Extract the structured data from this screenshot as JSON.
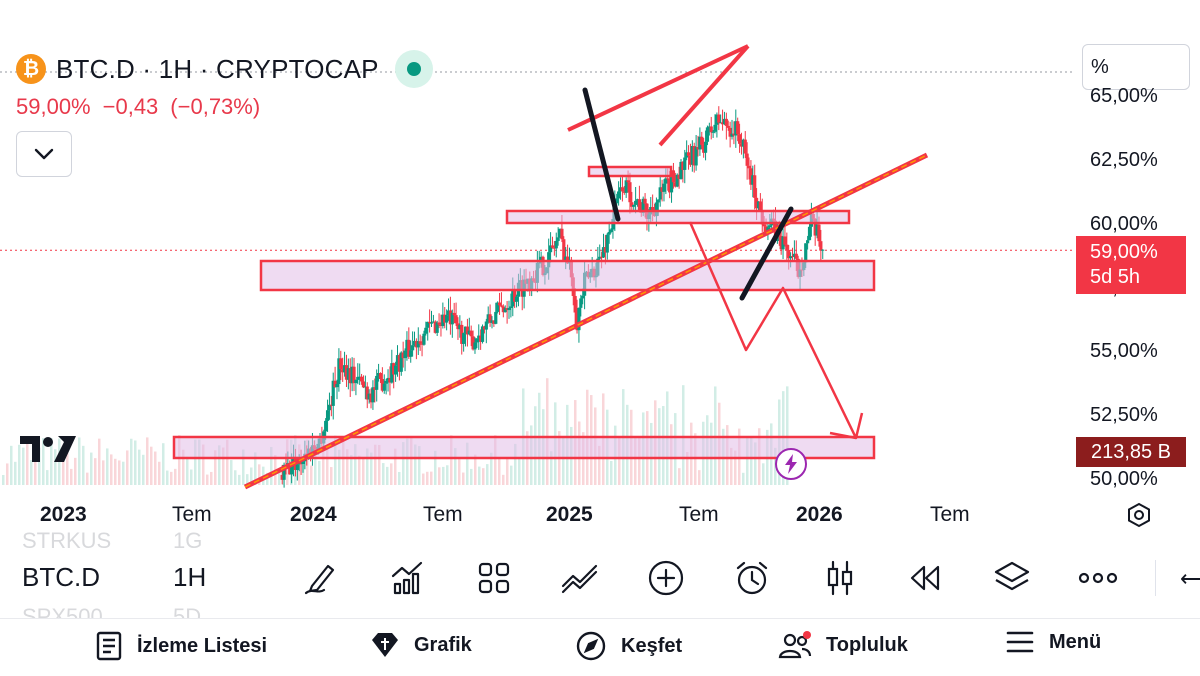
{
  "header": {
    "coin_glyph": "₿",
    "symbol_title": "BTC.D · 1H · CRYPTOCAP",
    "price": "59,00%",
    "change": "−0,43",
    "change_pct": "(−0,73%)"
  },
  "scale_mode": "%",
  "y_axis_ticks": [
    "65,00%",
    "62,50%",
    "60,00%",
    "57,50%",
    "55,00%",
    "52,50%",
    "50,00%"
  ],
  "price_tag": {
    "price": "59,00%",
    "countdown": "5d 5h"
  },
  "volume_tag": "213,85 B",
  "x_axis_ticks": [
    {
      "label": "2023",
      "bold": true
    },
    {
      "label": "Tem",
      "bold": false
    },
    {
      "label": "2024",
      "bold": true
    },
    {
      "label": "Tem",
      "bold": false
    },
    {
      "label": "2025",
      "bold": true
    },
    {
      "label": "Tem",
      "bold": false
    },
    {
      "label": "2026",
      "bold": true
    },
    {
      "label": "Tem",
      "bold": false
    }
  ],
  "colors": {
    "up": "#089981",
    "down": "#f23645",
    "drawing": "#f23645",
    "zone_fill": "#e1bee7",
    "orange_line": "#ff9800"
  },
  "chart_data": {
    "type": "candlestick",
    "title": "BTC.D · 1H · CRYPTOCAP",
    "ylim": [
      50,
      65
    ],
    "close_path": [
      [
        2023.85,
        50.2
      ],
      [
        2024.0,
        51.5
      ],
      [
        2024.08,
        54.6
      ],
      [
        2024.2,
        53.4
      ],
      [
        2024.3,
        54.5
      ],
      [
        2024.4,
        55.7
      ],
      [
        2024.5,
        56.4
      ],
      [
        2024.6,
        55.4
      ],
      [
        2024.7,
        56.5
      ],
      [
        2024.8,
        57.6
      ],
      [
        2024.9,
        58.6
      ],
      [
        2024.95,
        59.6
      ],
      [
        2025.0,
        58.0
      ],
      [
        2025.02,
        56.3
      ],
      [
        2025.05,
        57.7
      ],
      [
        2025.12,
        58.8
      ],
      [
        2025.2,
        61.6
      ],
      [
        2025.3,
        60.4
      ],
      [
        2025.4,
        61.8
      ],
      [
        2025.5,
        62.9
      ],
      [
        2025.58,
        64.1
      ],
      [
        2025.66,
        63.6
      ],
      [
        2025.7,
        62.2
      ],
      [
        2025.75,
        60.4
      ],
      [
        2025.83,
        59.4
      ],
      [
        2025.9,
        58.2
      ],
      [
        2025.95,
        60.0
      ],
      [
        2026.0,
        59.0
      ]
    ],
    "drawings": {
      "support_zones": [
        "57.6-58.6 %",
        "49.9-50.8 %"
      ],
      "resistance_zones": [
        "59.8-60.2 %",
        "61.8-62.1 %"
      ],
      "trendlines": [
        "ascending support from 2023 low",
        "rising wedge top 2025"
      ],
      "projection": "down arrow toward ~51%"
    }
  },
  "toolbar": {
    "symbol": "BTC.D",
    "interval": "1H",
    "ghost_top_symbol": "STRKUS",
    "ghost_top_interval": "1G",
    "ghost_bottom_symbol": "SPX500",
    "ghost_bottom_interval": "5D",
    "icons": [
      "drawing-pen-icon",
      "indicators-icon",
      "templates-grid-icon",
      "chart-compare-icon",
      "add-icon",
      "alert-clock-icon",
      "candle-type-icon",
      "replay-icon",
      "layers-icon",
      "more-icon"
    ],
    "back_glyph": "⟵"
  },
  "bottom_nav": [
    {
      "label": "İzleme Listesi",
      "icon": "watchlist-icon"
    },
    {
      "label": "Grafik",
      "icon": "chart-diamond-icon"
    },
    {
      "label": "Keşfet",
      "icon": "compass-icon"
    },
    {
      "label": "Topluluk",
      "icon": "community-icon"
    },
    {
      "label": "Menü",
      "icon": "menu-icon"
    }
  ]
}
